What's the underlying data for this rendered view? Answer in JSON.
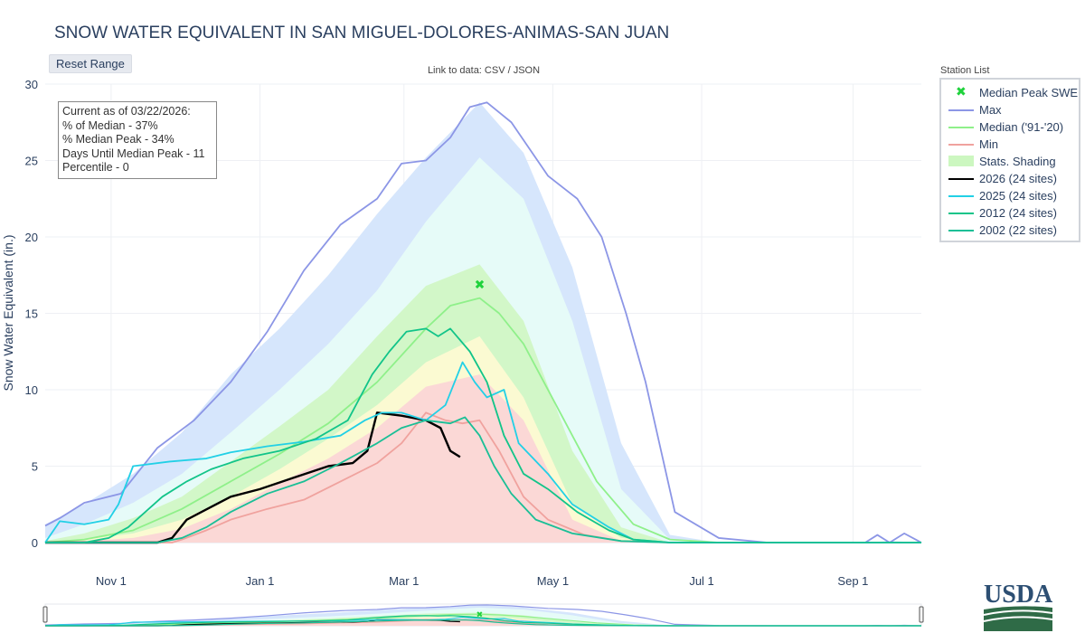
{
  "title": "SNOW WATER EQUIVALENT IN SAN MIGUEL-DOLORES-ANIMAS-SAN JUAN",
  "reset_button": "Reset Range",
  "data_link": "Link to data: CSV / JSON",
  "station_list": "Station List",
  "stats": {
    "line1": "Current as of 03/22/2026:",
    "line2": "% of Median - 37%",
    "line3": "% Median Peak - 34%",
    "line4": "Days Until Median Peak - 11",
    "line5": "Percentile - 0"
  },
  "logo_text": "USDA",
  "legend": [
    {
      "label": "Median Peak SWE",
      "kind": "mark",
      "color": "#1fd23c"
    },
    {
      "label": "Max",
      "kind": "line",
      "color": "#8c96e6"
    },
    {
      "label": "Median ('91-'20)",
      "kind": "line",
      "color": "#8ff08a"
    },
    {
      "label": "Min",
      "kind": "line",
      "color": "#f0a29e"
    },
    {
      "label": "Stats. Shading",
      "kind": "fill",
      "color": "#ccf7c0"
    },
    {
      "label": "2026 (24 sites)",
      "kind": "line",
      "color": "#000000"
    },
    {
      "label": "2025 (24 sites)",
      "kind": "line",
      "color": "#22d0e6"
    },
    {
      "label": "2012 (24 sites)",
      "kind": "line",
      "color": "#12c489"
    },
    {
      "label": "2002 (22 sites)",
      "kind": "line",
      "color": "#1abf96"
    }
  ],
  "chart_data": {
    "type": "line",
    "title": "SNOW WATER EQUIVALENT IN SAN MIGUEL-DOLORES-ANIMAS-SAN JUAN",
    "xlabel": "",
    "ylabel": "Snow Water Equivalent (in.)",
    "x_ticks": [
      "Nov 1",
      "Jan 1",
      "Mar 1",
      "May 1",
      "Jul 1",
      "Sep 1"
    ],
    "x_tick_days": [
      31,
      92,
      151,
      212,
      273,
      335
    ],
    "y_ticks": [
      0,
      5,
      10,
      15,
      20,
      25,
      30
    ],
    "ylim": [
      0,
      30
    ],
    "xlim_days": [
      4,
      363
    ],
    "grid": true,
    "legend_position": "right",
    "x": [
      4,
      20,
      40,
      60,
      80,
      100,
      120,
      140,
      160,
      182,
      200,
      220,
      240,
      260,
      280,
      300,
      320,
      340,
      350,
      363
    ],
    "shading": [
      {
        "name": "max-band",
        "color": "#d6e6fc",
        "upper": [
          1.2,
          2.5,
          4.5,
          7.2,
          11.0,
          14.0,
          17.5,
          21.5,
          25.2,
          28.8,
          25.5,
          18.0,
          6.5,
          0.5,
          0.0,
          0.0,
          0.0,
          0.0,
          0.1,
          0.0
        ]
      },
      {
        "name": "p90-band",
        "color": "#e6fbf8",
        "upper": [
          0.3,
          1.2,
          2.6,
          4.5,
          7.2,
          10.0,
          13.0,
          16.5,
          21.0,
          25.2,
          22.5,
          14.5,
          3.5,
          0.2,
          0.0,
          0.0,
          0.0,
          0.0,
          0.0,
          0.0
        ]
      },
      {
        "name": "p70-band",
        "color": "#d2f7c8",
        "upper": [
          0.1,
          0.6,
          1.6,
          3.0,
          5.3,
          7.6,
          10.0,
          13.5,
          16.8,
          18.2,
          14.5,
          6.0,
          1.0,
          0.0,
          0.0,
          0.0,
          0.0,
          0.0,
          0.0,
          0.0
        ]
      },
      {
        "name": "p30-band",
        "color": "#fbfad2",
        "upper": [
          0.0,
          0.2,
          0.6,
          1.5,
          3.0,
          4.8,
          6.8,
          9.0,
          11.8,
          13.5,
          9.5,
          2.5,
          0.3,
          0.0,
          0.0,
          0.0,
          0.0,
          0.0,
          0.0,
          0.0
        ]
      },
      {
        "name": "p10-band",
        "color": "#fbd8d6",
        "upper": [
          0.0,
          0.1,
          0.3,
          0.9,
          2.2,
          3.9,
          5.5,
          7.5,
          10.2,
          11.0,
          8.0,
          1.5,
          0.1,
          0.0,
          0.0,
          0.0,
          0.0,
          0.0,
          0.0,
          0.0
        ]
      }
    ],
    "series": [
      {
        "name": "Max",
        "color": "#8c96e6",
        "x": [
          4,
          10,
          20,
          35,
          50,
          65,
          80,
          95,
          110,
          125,
          140,
          150,
          160,
          170,
          178,
          185,
          195,
          210,
          222,
          232,
          242,
          250,
          262,
          280,
          300,
          320,
          340,
          345,
          350,
          356,
          363
        ],
        "values": [
          1.1,
          1.6,
          2.6,
          3.2,
          6.2,
          8.0,
          10.5,
          13.8,
          17.8,
          20.8,
          22.5,
          24.8,
          25.0,
          26.5,
          28.5,
          28.8,
          27.5,
          24.0,
          22.5,
          20.0,
          15.0,
          10.5,
          2.0,
          0.3,
          0.0,
          0.0,
          0.0,
          0.5,
          0.0,
          0.6,
          0.0
        ]
      },
      {
        "name": "Median ('91-'20)",
        "color": "#8ff08a",
        "x": [
          4,
          20,
          40,
          60,
          80,
          100,
          120,
          140,
          160,
          170,
          182,
          190,
          200,
          215,
          230,
          245,
          260,
          280,
          300,
          363
        ],
        "values": [
          0.0,
          0.2,
          0.8,
          2.2,
          4.0,
          5.8,
          7.8,
          10.5,
          14.0,
          15.5,
          16.0,
          15.0,
          13.0,
          8.5,
          4.0,
          1.2,
          0.2,
          0.0,
          0.0,
          0.0
        ]
      },
      {
        "name": "Min",
        "color": "#f0a29e",
        "x": [
          4,
          20,
          40,
          56,
          60,
          70,
          80,
          95,
          110,
          125,
          140,
          150,
          160,
          168,
          175,
          182,
          190,
          200,
          210,
          225,
          240,
          260,
          300,
          363
        ],
        "values": [
          0.0,
          0.0,
          0.0,
          0.0,
          0.2,
          0.8,
          1.5,
          2.2,
          2.8,
          4.0,
          5.2,
          6.5,
          8.5,
          8.0,
          7.8,
          8.0,
          6.0,
          3.0,
          1.5,
          0.5,
          0.1,
          0.0,
          0.0,
          0.0
        ]
      },
      {
        "name": "2026 (24 sites)",
        "color": "#000000",
        "x": [
          4,
          30,
          50,
          56,
          62,
          68,
          80,
          92,
          105,
          120,
          130,
          136,
          140,
          150,
          160,
          166,
          170,
          174
        ],
        "values": [
          0.0,
          0.0,
          0.0,
          0.3,
          1.5,
          2.0,
          3.0,
          3.5,
          4.2,
          5.0,
          5.2,
          6.0,
          8.5,
          8.3,
          8.0,
          7.5,
          6.0,
          5.6
        ]
      },
      {
        "name": "2025 (24 sites)",
        "color": "#22d0e6",
        "x": [
          4,
          10,
          20,
          30,
          34,
          40,
          55,
          70,
          80,
          95,
          110,
          125,
          135,
          142,
          150,
          160,
          168,
          175,
          180,
          185,
          192,
          198,
          210,
          220,
          235,
          245,
          260,
          300,
          363
        ],
        "values": [
          0.0,
          1.4,
          1.2,
          1.5,
          2.5,
          5.0,
          5.3,
          5.5,
          5.9,
          6.3,
          6.6,
          7.0,
          8.0,
          8.5,
          8.5,
          8.0,
          9.0,
          11.8,
          10.5,
          9.5,
          10.0,
          6.5,
          4.5,
          2.5,
          1.0,
          0.2,
          0.0,
          0.0,
          0.0
        ]
      },
      {
        "name": "2012 (24 sites)",
        "color": "#12c489",
        "x": [
          4,
          20,
          30,
          38,
          45,
          52,
          62,
          72,
          85,
          100,
          115,
          128,
          138,
          145,
          152,
          160,
          165,
          170,
          178,
          185,
          192,
          200,
          210,
          222,
          235,
          245,
          260,
          363
        ],
        "values": [
          0.0,
          0.0,
          0.3,
          1.0,
          2.0,
          3.0,
          4.0,
          4.8,
          5.5,
          6.0,
          6.8,
          8.0,
          11.0,
          12.5,
          13.8,
          14.0,
          13.5,
          14.0,
          12.5,
          10.5,
          7.0,
          4.5,
          3.5,
          2.0,
          0.8,
          0.2,
          0.0,
          0.0
        ]
      },
      {
        "name": "2002 (22 sites)",
        "color": "#1abf96",
        "x": [
          4,
          20,
          30,
          40,
          50,
          60,
          70,
          80,
          95,
          110,
          125,
          140,
          150,
          160,
          170,
          176,
          182,
          188,
          195,
          205,
          220,
          240,
          260,
          363
        ],
        "values": [
          0.0,
          0.0,
          0.0,
          0.0,
          0.0,
          0.3,
          1.0,
          2.0,
          3.2,
          4.0,
          5.2,
          6.5,
          7.5,
          8.0,
          7.8,
          8.2,
          7.0,
          5.0,
          3.2,
          1.5,
          0.6,
          0.1,
          0.0,
          0.0
        ]
      }
    ],
    "median_peak": {
      "x": 182,
      "y": 16.9,
      "label": "Median Peak SWE"
    }
  }
}
